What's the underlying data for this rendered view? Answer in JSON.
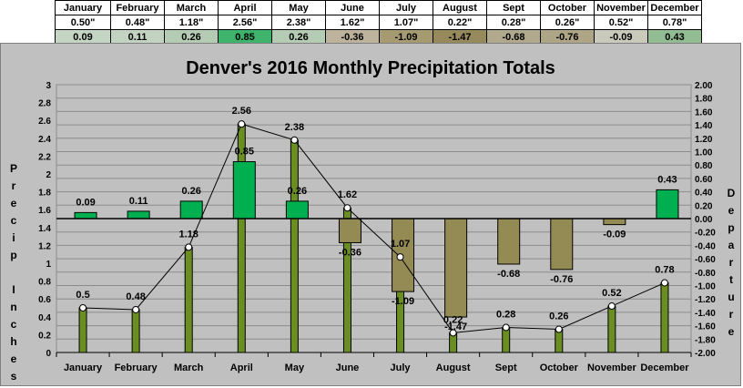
{
  "table": {
    "months": [
      "January",
      "February",
      "March",
      "April",
      "May",
      "June",
      "July",
      "August",
      "Sept",
      "October",
      "November",
      "December"
    ],
    "precip_labels": [
      "0.50\"",
      "0.48\"",
      "1.18\"",
      "2.56\"",
      "2.38\"",
      "1.62\"",
      "1.07\"",
      "0.22\"",
      "0.28\"",
      "0.26\"",
      "0.52\"",
      "0.78\""
    ],
    "departure_labels": [
      "0.09",
      "0.11",
      "0.26",
      "0.85",
      "0.26",
      "-0.36",
      "-1.09",
      "-1.47",
      "-0.68",
      "-0.76",
      "-0.09",
      "0.43"
    ],
    "colors": {
      "header_bg": "#ffffff",
      "precip_bg": "#ffffff",
      "departure_bg": [
        "#c4d5c4",
        "#c2d3c2",
        "#b4cbb4",
        "#3db36b",
        "#b4cbb4",
        "#bdb39d",
        "#a69b70",
        "#968a5c",
        "#b1a98e",
        "#aea586",
        "#c9c9bc",
        "#92bc92"
      ]
    }
  },
  "chart_data": {
    "type": "bar",
    "title": "Denver's 2016 Monthly Precipitation Totals",
    "categories": [
      "January",
      "February",
      "March",
      "April",
      "May",
      "June",
      "July",
      "August",
      "Sept",
      "October",
      "November",
      "December"
    ],
    "ylabel": "Precip Inches",
    "y2label": "Departure",
    "ylim": [
      0,
      3
    ],
    "yticks": [
      "0",
      "0.2",
      "0.4",
      "0.6",
      "0.8",
      "1",
      "1.2",
      "1.4",
      "1.6",
      "1.8",
      "2",
      "2.2",
      "2.4",
      "2.6",
      "2.8",
      "3"
    ],
    "y2lim": [
      -2,
      2
    ],
    "y2ticks": [
      "-2.00",
      "-1.80",
      "-1.60",
      "-1.40",
      "-1.20",
      "-1.00",
      "-0.80",
      "-0.60",
      "-0.40",
      "-0.20",
      "0.00",
      "0.20",
      "0.40",
      "0.60",
      "0.80",
      "1.00",
      "1.20",
      "1.40",
      "1.60",
      "1.80",
      "2.00"
    ],
    "grid": true,
    "legend": "none",
    "series": [
      {
        "axis": "left",
        "render": "bar",
        "color": "#6b8e23",
        "values": [
          0.5,
          0.48,
          1.18,
          2.56,
          2.38,
          1.62,
          1.07,
          0.22,
          0.28,
          0.26,
          0.52,
          0.78
        ],
        "data_labels": [
          "0.5",
          "0.48",
          "1.18",
          "2.56",
          "2.38",
          "1.62",
          "1.07",
          "0.22",
          "0.28",
          "0.26",
          "0.52",
          "0.78"
        ]
      },
      {
        "axis": "left",
        "render": "line",
        "color": "#000000",
        "values": [
          0.5,
          0.48,
          1.18,
          2.56,
          2.38,
          1.62,
          1.07,
          0.22,
          0.28,
          0.26,
          0.52,
          0.78
        ]
      },
      {
        "axis": "right",
        "render": "bar",
        "positive_color": "#00b050",
        "negative_color": "#948a54",
        "values": [
          0.09,
          0.11,
          0.26,
          0.85,
          0.26,
          -0.36,
          -1.09,
          -1.47,
          -0.68,
          -0.76,
          -0.09,
          0.43
        ],
        "data_labels": [
          "0.09",
          "0.11",
          "0.26",
          "0.85",
          "0.26",
          "-0.36",
          "-1.09",
          "-1.47",
          "-0.68",
          "-0.76",
          "-0.09",
          "0.43"
        ]
      }
    ]
  }
}
